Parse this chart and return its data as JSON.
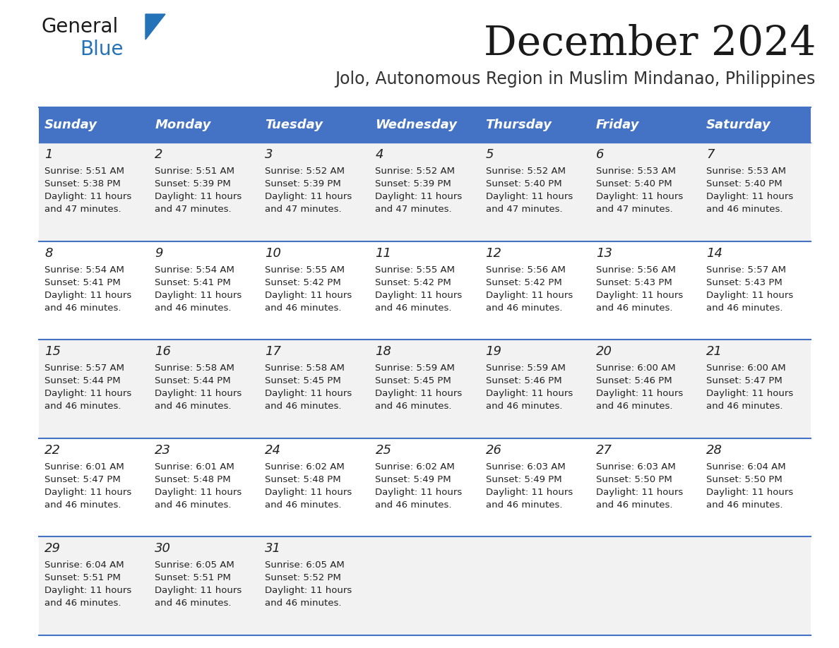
{
  "title": "December 2024",
  "subtitle": "Jolo, Autonomous Region in Muslim Mindanao, Philippines",
  "days_of_week": [
    "Sunday",
    "Monday",
    "Tuesday",
    "Wednesday",
    "Thursday",
    "Friday",
    "Saturday"
  ],
  "header_bg": "#4472C4",
  "header_text": "#FFFFFF",
  "row_bg_odd": "#F2F2F2",
  "row_bg_even": "#FFFFFF",
  "cell_text_color": "#222222",
  "grid_line_color": "#4472C4",
  "calendar_data": [
    {
      "day": 1,
      "col": 0,
      "row": 0,
      "sunrise": "5:51 AM",
      "sunset": "5:38 PM",
      "daylight_extra": "47"
    },
    {
      "day": 2,
      "col": 1,
      "row": 0,
      "sunrise": "5:51 AM",
      "sunset": "5:39 PM",
      "daylight_extra": "47"
    },
    {
      "day": 3,
      "col": 2,
      "row": 0,
      "sunrise": "5:52 AM",
      "sunset": "5:39 PM",
      "daylight_extra": "47"
    },
    {
      "day": 4,
      "col": 3,
      "row": 0,
      "sunrise": "5:52 AM",
      "sunset": "5:39 PM",
      "daylight_extra": "47"
    },
    {
      "day": 5,
      "col": 4,
      "row": 0,
      "sunrise": "5:52 AM",
      "sunset": "5:40 PM",
      "daylight_extra": "47"
    },
    {
      "day": 6,
      "col": 5,
      "row": 0,
      "sunrise": "5:53 AM",
      "sunset": "5:40 PM",
      "daylight_extra": "47"
    },
    {
      "day": 7,
      "col": 6,
      "row": 0,
      "sunrise": "5:53 AM",
      "sunset": "5:40 PM",
      "daylight_extra": "46"
    },
    {
      "day": 8,
      "col": 0,
      "row": 1,
      "sunrise": "5:54 AM",
      "sunset": "5:41 PM",
      "daylight_extra": "46"
    },
    {
      "day": 9,
      "col": 1,
      "row": 1,
      "sunrise": "5:54 AM",
      "sunset": "5:41 PM",
      "daylight_extra": "46"
    },
    {
      "day": 10,
      "col": 2,
      "row": 1,
      "sunrise": "5:55 AM",
      "sunset": "5:42 PM",
      "daylight_extra": "46"
    },
    {
      "day": 11,
      "col": 3,
      "row": 1,
      "sunrise": "5:55 AM",
      "sunset": "5:42 PM",
      "daylight_extra": "46"
    },
    {
      "day": 12,
      "col": 4,
      "row": 1,
      "sunrise": "5:56 AM",
      "sunset": "5:42 PM",
      "daylight_extra": "46"
    },
    {
      "day": 13,
      "col": 5,
      "row": 1,
      "sunrise": "5:56 AM",
      "sunset": "5:43 PM",
      "daylight_extra": "46"
    },
    {
      "day": 14,
      "col": 6,
      "row": 1,
      "sunrise": "5:57 AM",
      "sunset": "5:43 PM",
      "daylight_extra": "46"
    },
    {
      "day": 15,
      "col": 0,
      "row": 2,
      "sunrise": "5:57 AM",
      "sunset": "5:44 PM",
      "daylight_extra": "46"
    },
    {
      "day": 16,
      "col": 1,
      "row": 2,
      "sunrise": "5:58 AM",
      "sunset": "5:44 PM",
      "daylight_extra": "46"
    },
    {
      "day": 17,
      "col": 2,
      "row": 2,
      "sunrise": "5:58 AM",
      "sunset": "5:45 PM",
      "daylight_extra": "46"
    },
    {
      "day": 18,
      "col": 3,
      "row": 2,
      "sunrise": "5:59 AM",
      "sunset": "5:45 PM",
      "daylight_extra": "46"
    },
    {
      "day": 19,
      "col": 4,
      "row": 2,
      "sunrise": "5:59 AM",
      "sunset": "5:46 PM",
      "daylight_extra": "46"
    },
    {
      "day": 20,
      "col": 5,
      "row": 2,
      "sunrise": "6:00 AM",
      "sunset": "5:46 PM",
      "daylight_extra": "46"
    },
    {
      "day": 21,
      "col": 6,
      "row": 2,
      "sunrise": "6:00 AM",
      "sunset": "5:47 PM",
      "daylight_extra": "46"
    },
    {
      "day": 22,
      "col": 0,
      "row": 3,
      "sunrise": "6:01 AM",
      "sunset": "5:47 PM",
      "daylight_extra": "46"
    },
    {
      "day": 23,
      "col": 1,
      "row": 3,
      "sunrise": "6:01 AM",
      "sunset": "5:48 PM",
      "daylight_extra": "46"
    },
    {
      "day": 24,
      "col": 2,
      "row": 3,
      "sunrise": "6:02 AM",
      "sunset": "5:48 PM",
      "daylight_extra": "46"
    },
    {
      "day": 25,
      "col": 3,
      "row": 3,
      "sunrise": "6:02 AM",
      "sunset": "5:49 PM",
      "daylight_extra": "46"
    },
    {
      "day": 26,
      "col": 4,
      "row": 3,
      "sunrise": "6:03 AM",
      "sunset": "5:49 PM",
      "daylight_extra": "46"
    },
    {
      "day": 27,
      "col": 5,
      "row": 3,
      "sunrise": "6:03 AM",
      "sunset": "5:50 PM",
      "daylight_extra": "46"
    },
    {
      "day": 28,
      "col": 6,
      "row": 3,
      "sunrise": "6:04 AM",
      "sunset": "5:50 PM",
      "daylight_extra": "46"
    },
    {
      "day": 29,
      "col": 0,
      "row": 4,
      "sunrise": "6:04 AM",
      "sunset": "5:51 PM",
      "daylight_extra": "46"
    },
    {
      "day": 30,
      "col": 1,
      "row": 4,
      "sunrise": "6:05 AM",
      "sunset": "5:51 PM",
      "daylight_extra": "46"
    },
    {
      "day": 31,
      "col": 2,
      "row": 4,
      "sunrise": "6:05 AM",
      "sunset": "5:52 PM",
      "daylight_extra": "46"
    }
  ],
  "logo_color_general": "#1a1a1a",
  "logo_color_blue": "#2472B8",
  "logo_triangle_color": "#2472B8"
}
